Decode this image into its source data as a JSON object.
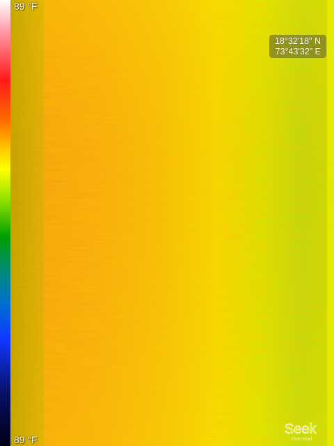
{
  "temperature_scale": {
    "max_label": "89 °F",
    "min_label": "89 °F"
  },
  "gps": {
    "latitude": "18°32'18\" N",
    "longitude": "73°43'32\" E"
  },
  "logo": {
    "wordmark": "Seek",
    "subtext": "thermal"
  },
  "colors": {
    "orange": "#f5a10a",
    "yellow": "#f2e400",
    "green": "#bfe000"
  }
}
